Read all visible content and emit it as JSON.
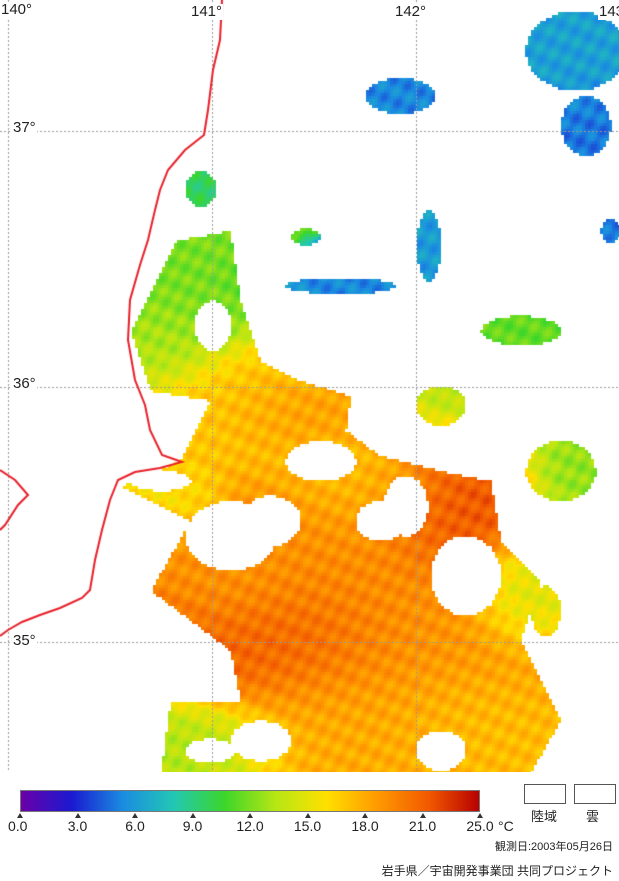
{
  "colors": {
    "land_border": "#e8202a",
    "grid": "#9a9a9a",
    "background": "#ffffff",
    "colorbar_stops": [
      "#6a00a8",
      "#1a1ad0",
      "#1a8ce0",
      "#22c7b4",
      "#3cd62a",
      "#b6e614",
      "#ffe000",
      "#ff9a00",
      "#f25a00",
      "#b80000"
    ]
  },
  "map": {
    "lon_labels": [
      "140°",
      "141°",
      "142°",
      "143"
    ],
    "lat_labels": [
      "37°",
      "36°",
      "35°"
    ]
  },
  "colorbar": {
    "tick_labels": [
      "0.0",
      "3.0",
      "6.0",
      "9.0",
      "12.0",
      "15.0",
      "18.0",
      "21.0",
      "25.0"
    ],
    "unit": "°C",
    "min": 0.0,
    "max": 25.0
  },
  "legend": {
    "land_label": "陸域",
    "cloud_label": "雲"
  },
  "obs_date": "観測日:2003年05月26日",
  "credit": "岩手県／宇宙開発事業団 共同プロジェクト"
}
